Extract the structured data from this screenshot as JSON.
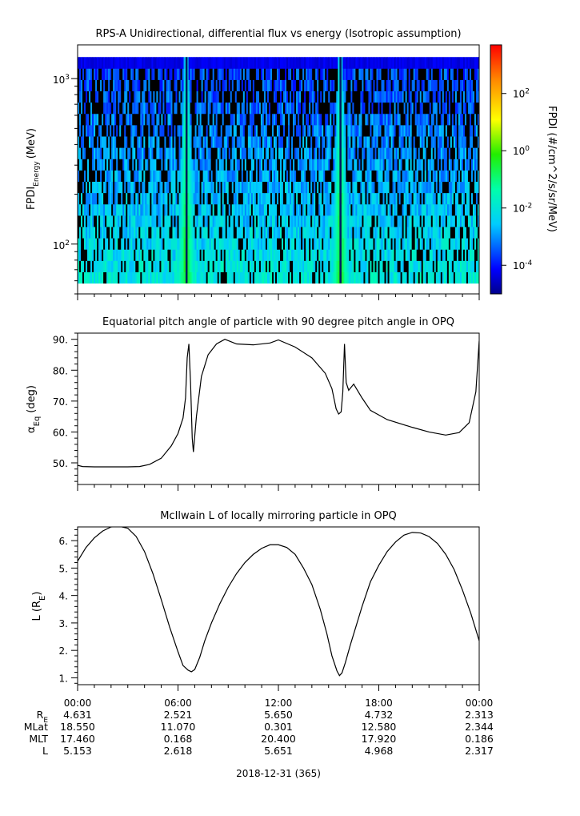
{
  "chart_data": [
    {
      "type": "heatmap",
      "title": "RPS-A Unidirectional, differential flux vs energy (Isotropic assumption)",
      "ylabel_main": "FPDI",
      "ylabel_sub": "Energy",
      "ylabel_unit": "(MeV)",
      "yscale": "log",
      "ylim": [
        50,
        1600
      ],
      "data_energy_range": [
        58,
        1350
      ],
      "yticks": [
        {
          "value": 100,
          "base": "10",
          "exp": "2"
        },
        {
          "value": 1000,
          "base": "10",
          "exp": "3"
        }
      ],
      "xlim_hours": [
        0,
        24
      ],
      "colorbar": {
        "label": "FPDI (#/cm^2/s/sr/MeV)",
        "scale": "log",
        "range": [
          1e-05,
          5000
        ],
        "colormap": "rainbow (blue to red)",
        "ticks": [
          {
            "value": 0.0001,
            "base": "10",
            "exp": "-4"
          },
          {
            "value": 0.01,
            "base": "10",
            "exp": "-2"
          },
          {
            "value": 1,
            "base": "10",
            "exp": "0"
          },
          {
            "value": 100,
            "base": "10",
            "exp": "2"
          }
        ]
      },
      "bright_bands_hours": [
        6.5,
        15.7
      ]
    },
    {
      "type": "line",
      "title": "Equatorial pitch angle of particle with 90 degree pitch angle in OPQ",
      "ylabel_main": "α",
      "ylabel_sub": "Eq",
      "ylabel_unit": "(deg)",
      "ylim": [
        43,
        92
      ],
      "yticks": [
        "50.",
        "60.",
        "70.",
        "80.",
        "90."
      ],
      "xlim_hours": [
        0,
        24
      ],
      "series": [
        {
          "x": [
            0,
            0.3,
            1,
            2,
            3,
            3.7,
            4.3,
            5,
            5.6,
            6,
            6.3,
            6.45,
            6.55,
            6.65,
            6.75,
            6.85,
            6.92,
            7.1,
            7.4,
            7.8,
            8.3,
            8.8,
            9.5,
            10.5,
            11.5,
            12,
            13,
            14,
            14.8,
            15.2,
            15.45,
            15.6,
            15.75,
            15.85,
            15.95,
            16.05,
            16.2,
            16.5,
            17,
            17.5,
            18.5,
            20,
            21,
            22,
            22.8,
            23.4,
            23.8,
            24
          ],
          "y": [
            49.2,
            48.8,
            48.7,
            48.7,
            48.7,
            48.8,
            49.5,
            51.5,
            55.5,
            59.5,
            64.5,
            71,
            84,
            88.5,
            76,
            58,
            53.5,
            65,
            78,
            85,
            88.5,
            90,
            88.5,
            88.2,
            88.8,
            89.8,
            87.5,
            84,
            79,
            74,
            67.5,
            65.8,
            66.5,
            73,
            88.5,
            76,
            73.5,
            75.5,
            71,
            67,
            64,
            61.5,
            60,
            59,
            59.8,
            63,
            73,
            89.5
          ]
        }
      ]
    },
    {
      "type": "line",
      "title": "McIlwain L of locally mirroring particle in OPQ",
      "ylabel_main": "L (R",
      "ylabel_sub": "E",
      "ylabel_unit": ")",
      "ylim": [
        0.75,
        6.5
      ],
      "yticks": [
        "1.",
        "2.",
        "3.",
        "4.",
        "5.",
        "6."
      ],
      "xlim_hours": [
        0,
        24
      ],
      "series": [
        {
          "x": [
            0,
            0.5,
            1,
            1.5,
            2,
            2.5,
            3,
            3.5,
            4,
            4.5,
            5,
            5.5,
            6,
            6.3,
            6.6,
            6.8,
            7,
            7.3,
            7.6,
            8,
            8.5,
            9,
            9.5,
            10,
            10.5,
            11,
            11.5,
            12,
            12.5,
            13,
            13.5,
            14,
            14.5,
            14.9,
            15.2,
            15.5,
            15.65,
            15.8,
            16,
            16.3,
            16.7,
            17,
            17.5,
            18,
            18.5,
            19,
            19.5,
            20,
            20.5,
            21,
            21.5,
            22,
            22.5,
            23,
            23.5,
            24
          ],
          "y": [
            5.25,
            5.75,
            6.1,
            6.35,
            6.5,
            6.52,
            6.45,
            6.15,
            5.6,
            4.8,
            3.85,
            2.85,
            1.95,
            1.45,
            1.28,
            1.22,
            1.3,
            1.75,
            2.35,
            3.0,
            3.7,
            4.3,
            4.8,
            5.2,
            5.5,
            5.72,
            5.85,
            5.85,
            5.75,
            5.5,
            5.0,
            4.4,
            3.5,
            2.6,
            1.8,
            1.25,
            1.08,
            1.18,
            1.55,
            2.2,
            3.0,
            3.6,
            4.5,
            5.1,
            5.6,
            5.95,
            6.2,
            6.3,
            6.28,
            6.15,
            5.9,
            5.5,
            4.95,
            4.2,
            3.35,
            2.35
          ]
        }
      ]
    }
  ],
  "x_axis": {
    "tick_labels": [
      "00:00",
      "06:00",
      "12:00",
      "18:00",
      "00:00"
    ],
    "tick_hours": [
      0,
      6,
      12,
      18,
      24
    ],
    "minor_step_hours": 1,
    "date_label": "2018-12-31 (365)"
  },
  "ephemeris": {
    "rows": [
      {
        "label": "R",
        "label_sub": "E",
        "values": [
          "4.631",
          "2.521",
          "5.650",
          "4.732",
          "2.313"
        ]
      },
      {
        "label": "MLat",
        "label_sub": "",
        "values": [
          "18.550",
          "11.070",
          "0.301",
          "12.580",
          "2.344"
        ]
      },
      {
        "label": "MLT",
        "label_sub": "",
        "values": [
          "17.460",
          "0.168",
          "20.400",
          "17.920",
          "0.186"
        ]
      },
      {
        "label": "L",
        "label_sub": "",
        "values": [
          "5.153",
          "2.618",
          "5.651",
          "4.968",
          "2.317"
        ]
      }
    ]
  }
}
